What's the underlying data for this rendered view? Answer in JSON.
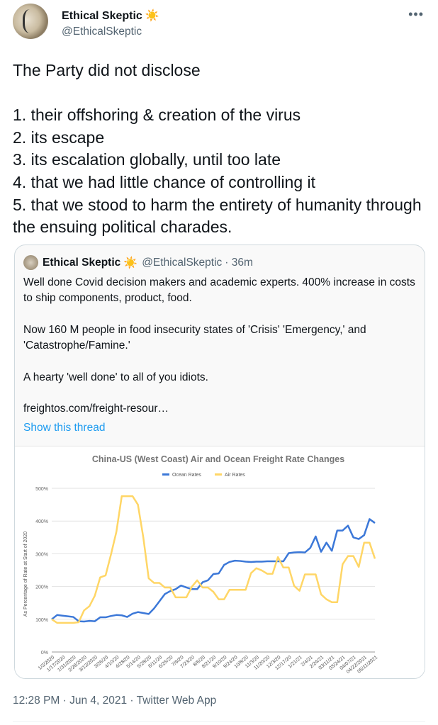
{
  "author": {
    "name": "Ethical Skeptic",
    "emoji": "☀️",
    "handle": "@EthicalSkeptic"
  },
  "more_icon": "more-horizontal-icon",
  "tweet_text": "The Party did not disclose\n\n1. their offshoring & creation of the virus\n2. its escape\n3. its escalation globally, until too late\n4. that we had little chance of controlling it\n5. that we stood to harm the entirety of humanity through the ensuing political charades.",
  "quote": {
    "name": "Ethical Skeptic",
    "emoji": "☀️",
    "handle": "@EthicalSkeptic",
    "time": "· 36m",
    "text": "Well done Covid decision makers and academic experts. 400% increase in costs to ship components, product, food.\n\nNow 160 M people in food insecurity states of 'Crisis' 'Emergency,' and 'Catastrophe/Famine.'\n\nA hearty 'well done' to all of you idiots.\n\nfreightos.com/freight-resour…",
    "show_thread": "Show this thread"
  },
  "footer": "12:28 PM · Jun 4, 2021 · Twitter Web App",
  "chart_data": {
    "type": "line",
    "title": "China-US (West Coast) Air and Ocean Freight Rate Changes",
    "ylabel": "As Percentage of Rate at Start of 2020",
    "xlabel": "",
    "ylim": [
      0,
      500
    ],
    "yticks": [
      "0%",
      "100%",
      "200%",
      "300%",
      "400%",
      "500%"
    ],
    "grid": true,
    "legend": "top",
    "x_tick_labels": [
      "1/3/2020",
      "1/17/2020",
      "1/31/2020",
      "2/28/2020",
      "3/13/2020",
      "3/26/20",
      "4/10/20",
      "4/28/20",
      "5/14/20",
      "5/28/20",
      "6/11/20",
      "6/25/20",
      "7/9/20",
      "7/23/20",
      "8/6/20",
      "8/21/20",
      "9/10/20",
      "9/24/20",
      "10/8/20",
      "11/3/20",
      "11/20/20",
      "12/3/20",
      "12/17/20",
      "1/21/21",
      "2/4/21",
      "2/24/21",
      "03/11/21",
      "03/24/21",
      "04/07/21",
      "04/22/2021",
      "05/11/2021"
    ],
    "series": [
      {
        "name": "Ocean Rates",
        "color": "#3c78d8",
        "values": [
          100,
          113,
          111,
          109,
          107,
          94,
          93,
          95,
          94,
          106,
          106,
          110,
          113,
          112,
          107,
          117,
          122,
          119,
          116,
          133,
          155,
          177,
          186,
          192,
          203,
          197,
          192,
          192,
          213,
          219,
          238,
          240,
          266,
          275,
          279,
          278,
          276,
          275,
          276,
          276,
          277,
          277,
          277,
          277,
          302,
          304,
          305,
          304,
          318,
          353,
          306,
          334,
          309,
          371,
          371,
          386,
          350,
          345,
          357,
          406,
          394
        ]
      },
      {
        "name": "Air Rates",
        "color": "#ffd666",
        "values": [
          100,
          89,
          89,
          89,
          89,
          91,
          127,
          140,
          172,
          228,
          234,
          298,
          367,
          476,
          476,
          476,
          450,
          350,
          225,
          211,
          211,
          197,
          197,
          167,
          167,
          167,
          199,
          219,
          197,
          197,
          184,
          161,
          161,
          190,
          190,
          190,
          190,
          241,
          256,
          249,
          239,
          239,
          290,
          258,
          258,
          202,
          187,
          237,
          237,
          237,
          176,
          161,
          152,
          152,
          268,
          293,
          293,
          260,
          334,
          334,
          285
        ]
      }
    ]
  }
}
